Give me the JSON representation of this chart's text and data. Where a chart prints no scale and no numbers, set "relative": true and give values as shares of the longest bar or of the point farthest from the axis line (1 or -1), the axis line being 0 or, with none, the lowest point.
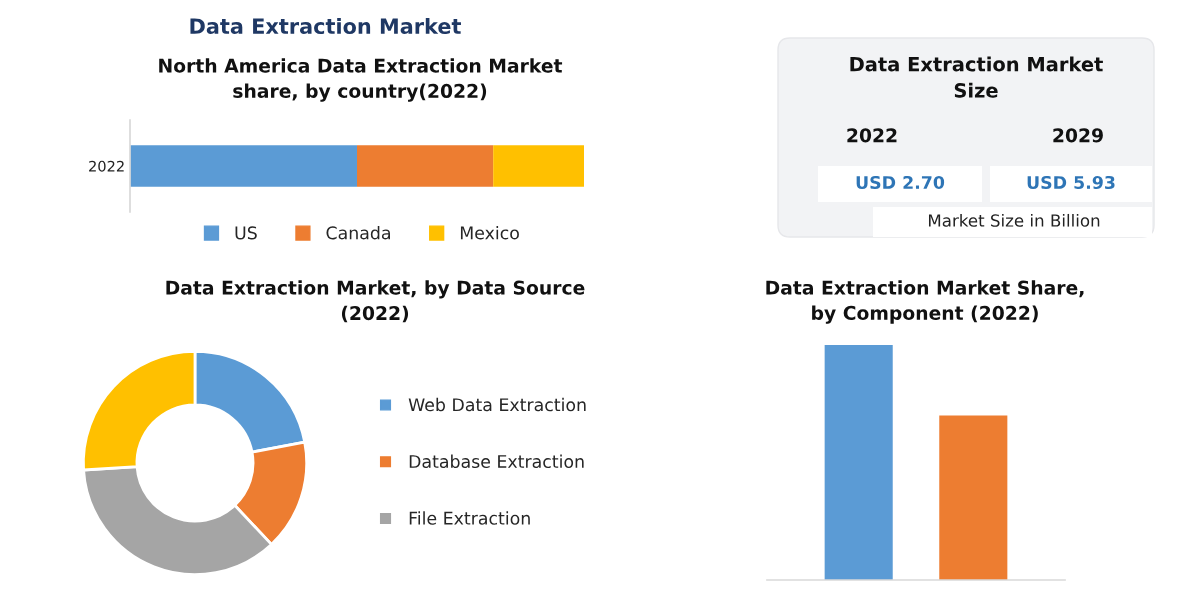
{
  "chart_data": [
    {
      "type": "bar",
      "orientation": "horizontal",
      "stacked": true,
      "relative": true,
      "title": "Data Extraction Market",
      "subtitle": "North America Data Extraction Market\nshare, by country(2022)",
      "categories": [
        "2022"
      ],
      "series": [
        {
          "name": "US",
          "color": "#5b9bd5",
          "values": [
            0.5
          ]
        },
        {
          "name": "Canada",
          "color": "#ed7d31",
          "values": [
            0.3
          ]
        },
        {
          "name": "Mexico",
          "color": "#ffc000",
          "values": [
            0.2
          ]
        }
      ],
      "legend": "bottom",
      "tick_labels": "y"
    },
    {
      "type": "other",
      "title": "Data Extraction Market\nSize",
      "annotations": [
        "2022",
        "2029",
        "USD 2.70",
        "USD 5.93",
        "Market Size in Billion"
      ]
    },
    {
      "type": "donut",
      "title": "Data Extraction Market, by Data Source\n(2022)",
      "categories": [
        "Web Data Extraction",
        "Database Extraction",
        "File Extraction",
        null
      ],
      "values": [
        22,
        16,
        36,
        26
      ],
      "colors": [
        "#5b9bd5",
        "#ed7d31",
        "#a5a5a5",
        "#ffc000"
      ],
      "legend": "right"
    },
    {
      "type": "bar",
      "relative": true,
      "title": "Data Extraction Market Share,\nby Component (2022)",
      "categories": [
        null,
        null
      ],
      "values": [
        1,
        0.7
      ],
      "colors": [
        "#5b9bd5",
        "#ed7d31"
      ]
    }
  ]
}
